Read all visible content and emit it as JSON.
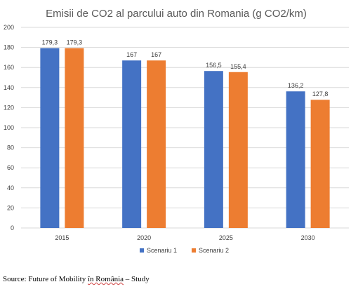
{
  "chart_data": {
    "type": "bar",
    "title": "Emisii de CO2 al parcului auto din Romania (g CO2/km)",
    "categories": [
      "2015",
      "2020",
      "2025",
      "2030"
    ],
    "series": [
      {
        "name": "Scenariu 1",
        "color": "#4472c4",
        "values": [
          179.3,
          167,
          156.5,
          136.2
        ],
        "labels": [
          "179,3",
          "167",
          "156,5",
          "136,2"
        ]
      },
      {
        "name": "Scenariu 2",
        "color": "#ed7d31",
        "values": [
          179.3,
          167,
          155.4,
          127.8
        ],
        "labels": [
          "179,3",
          "167",
          "155,4",
          "127,8"
        ]
      }
    ],
    "ylim": [
      0,
      200
    ],
    "yticks": [
      0,
      20,
      40,
      60,
      80,
      100,
      120,
      140,
      160,
      180,
      200
    ],
    "grid": true,
    "legend": "bottom"
  },
  "source": {
    "prefix": "Source: Future of Mobility ",
    "flagged": "în România",
    "suffix": " – Study"
  }
}
